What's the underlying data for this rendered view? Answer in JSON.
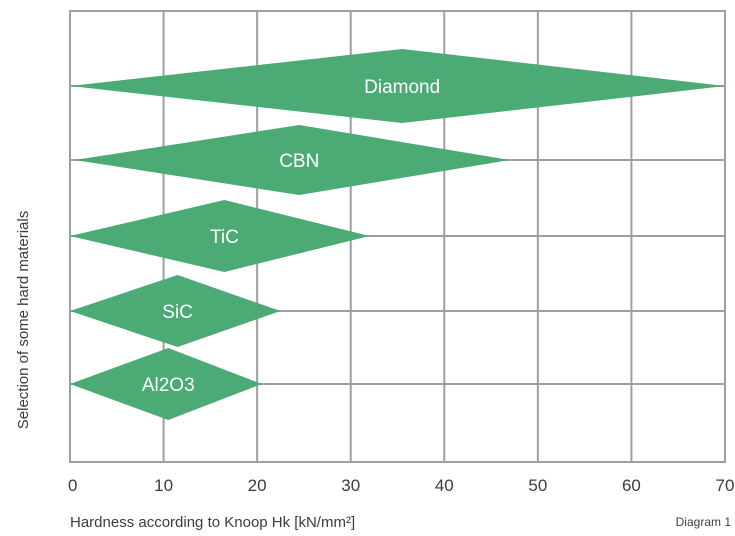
{
  "chart_data": {
    "type": "range-diamond",
    "xlabel": "Hardness according to Knoop Hk [kN/mm²]",
    "ylabel": "Selection of some hard materials",
    "caption": "Diagram 1",
    "xlim": [
      0,
      70
    ],
    "xticks": [
      "0",
      "10",
      "20",
      "30",
      "40",
      "50",
      "60",
      "70"
    ],
    "grid": true,
    "fill_color": "#4caa74",
    "grid_color": "#9aa0a4",
    "materials": [
      {
        "name": "Diamond",
        "min": 0,
        "peak": 35.5,
        "max": 70
      },
      {
        "name": "CBN",
        "min": 0.5,
        "peak": 24.5,
        "max": 47
      },
      {
        "name": "TiC",
        "min": 0,
        "peak": 16.5,
        "max": 32
      },
      {
        "name": "SiC",
        "min": 0,
        "peak": 11.5,
        "max": 22.5
      },
      {
        "name": "Al2O3",
        "min": 0,
        "peak": 10.5,
        "max": 20.5
      }
    ]
  }
}
